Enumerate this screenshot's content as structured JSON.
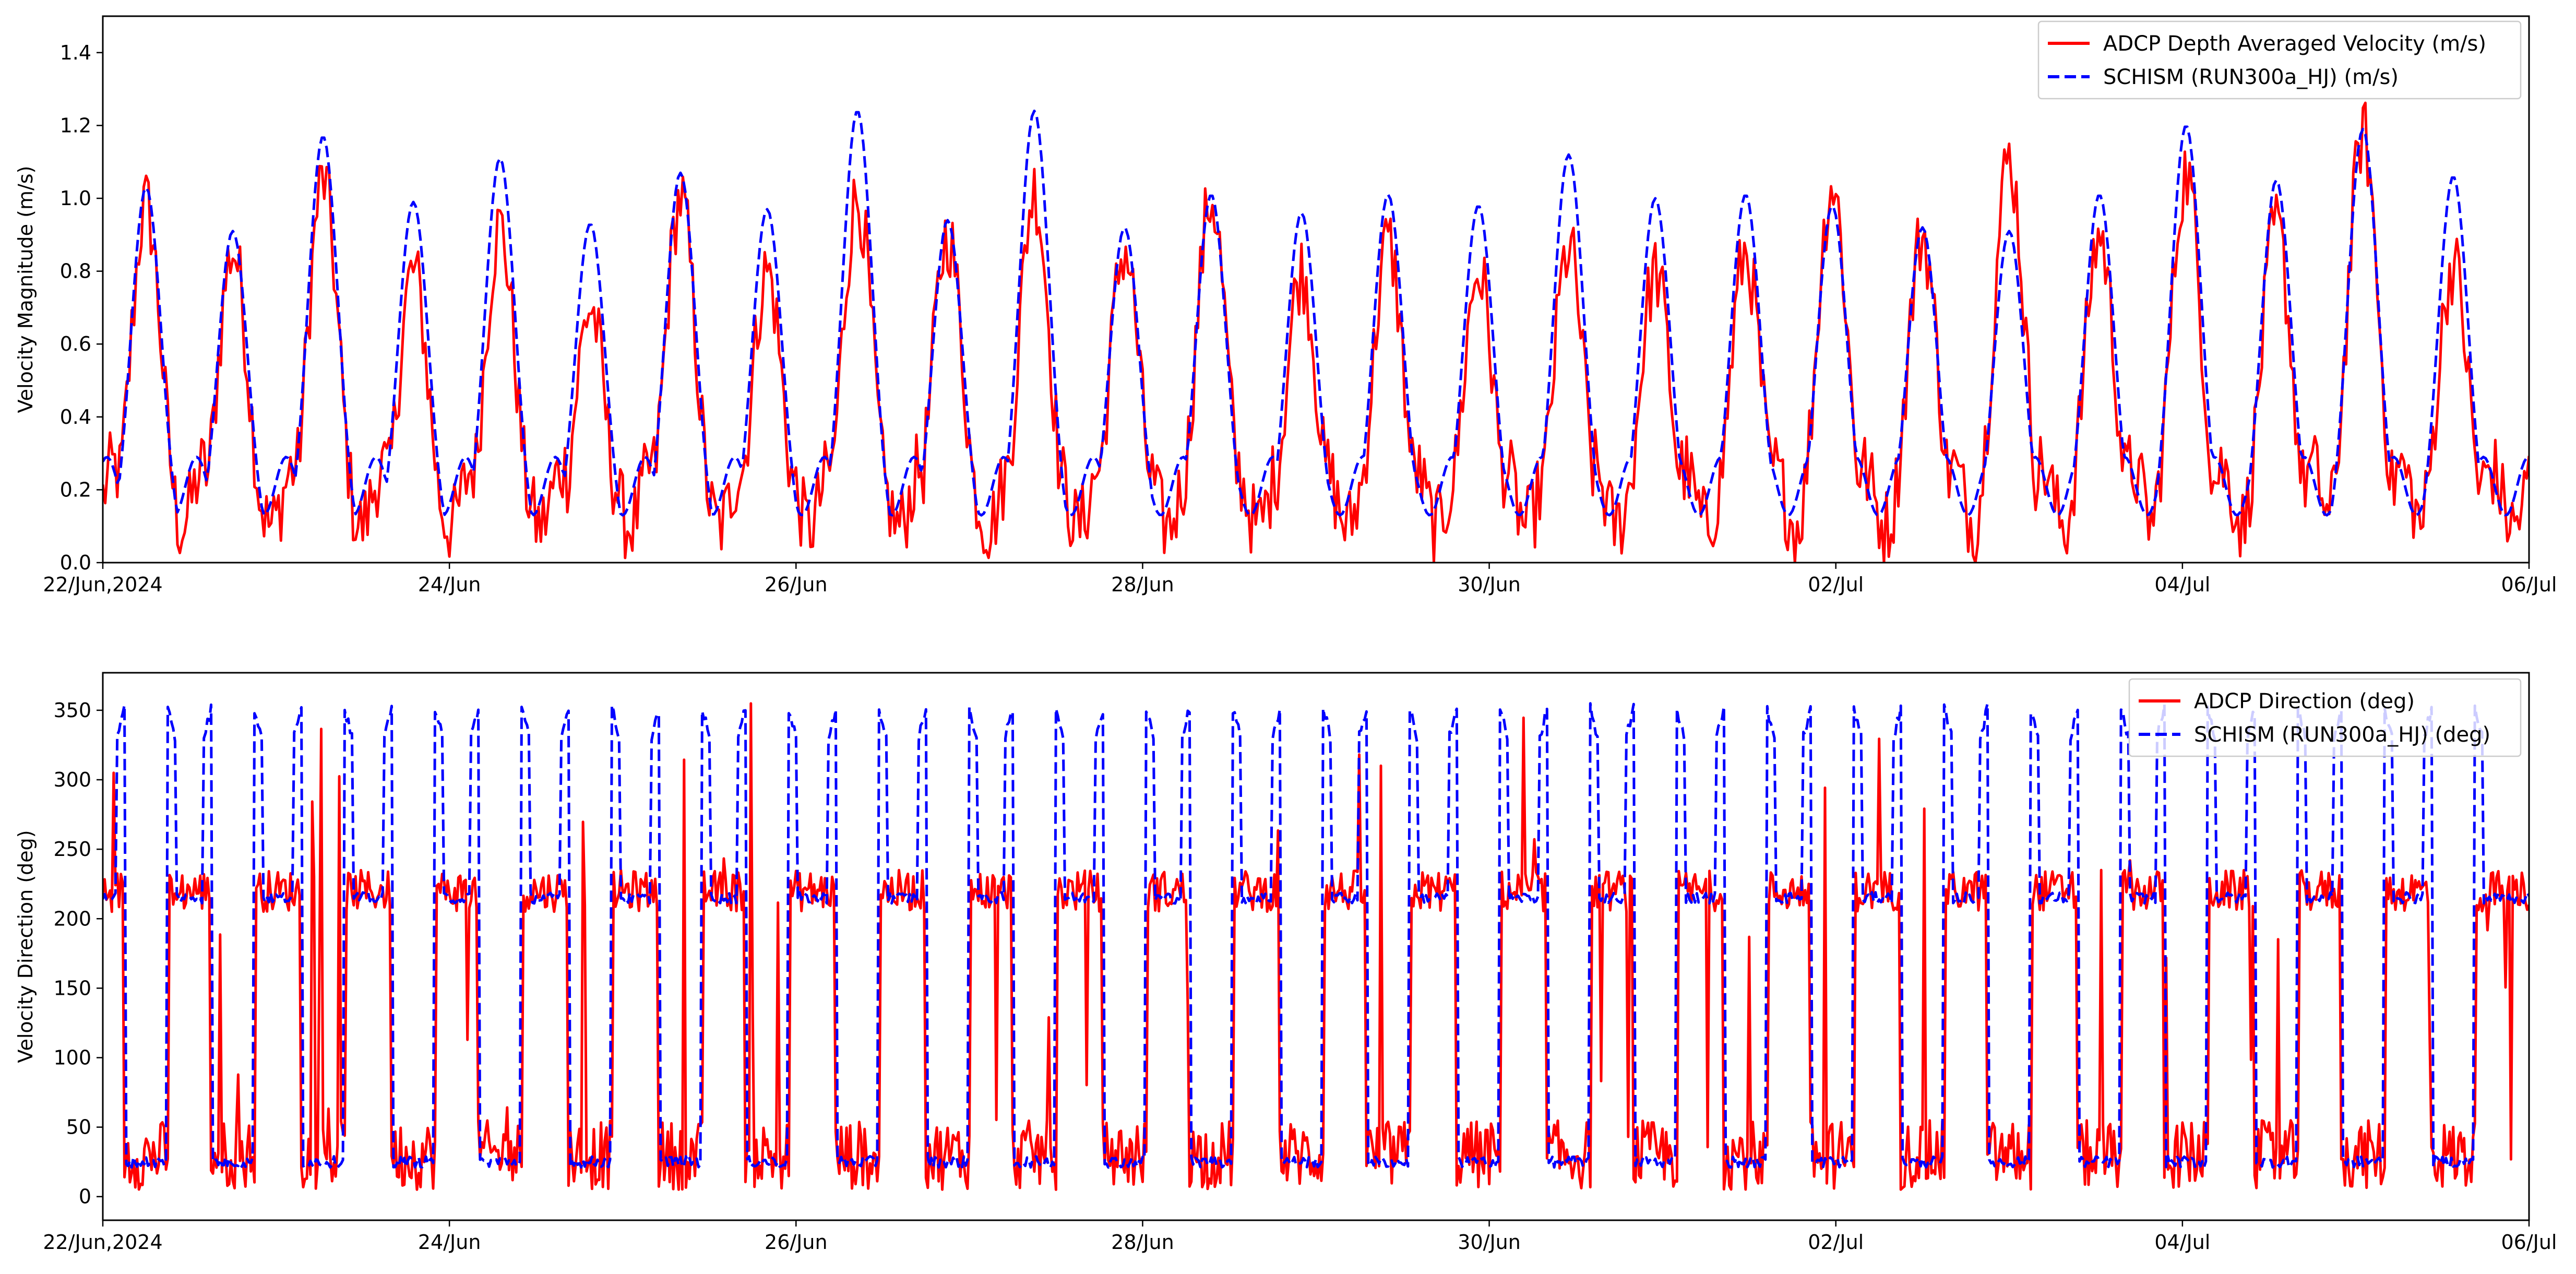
{
  "chart_data": [
    {
      "type": "line",
      "ylabel": "Velocity Magnitude (m/s)",
      "xlabel": "",
      "x_range": [
        "2024-06-22",
        "2024-07-06"
      ],
      "x_ticks": [
        {
          "date": "2024-06-22",
          "label": "22/Jun,2024"
        },
        {
          "date": "2024-06-24",
          "label": "24/Jun"
        },
        {
          "date": "2024-06-26",
          "label": "26/Jun"
        },
        {
          "date": "2024-06-28",
          "label": "28/Jun"
        },
        {
          "date": "2024-06-30",
          "label": "30/Jun"
        },
        {
          "date": "2024-07-02",
          "label": "02/Jul"
        },
        {
          "date": "2024-07-04",
          "label": "04/Jul"
        },
        {
          "date": "2024-07-06",
          "label": "06/Jul"
        }
      ],
      "ylim": [
        0.0,
        1.5
      ],
      "y_ticks": [
        "0.0",
        "0.2",
        "0.4",
        "0.6",
        "0.8",
        "1.0",
        "1.2",
        "1.4"
      ],
      "grid": false,
      "legend_position": "top-right",
      "series": [
        {
          "name": "ADCP Depth Averaged Velocity (m/s)",
          "color": "#ff0000",
          "style": "solid",
          "peaks": [
            {
              "date": "2024-06-22 06:00",
              "value": 0.98
            },
            {
              "date": "2024-06-22 18:00",
              "value": 0.86
            },
            {
              "date": "2024-06-23 06:30",
              "value": 1.05
            },
            {
              "date": "2024-06-23 19:00",
              "value": 0.8
            },
            {
              "date": "2024-06-24 07:00",
              "value": 0.92
            },
            {
              "date": "2024-06-24 19:30",
              "value": 0.7
            },
            {
              "date": "2024-06-25 08:00",
              "value": 1.0
            },
            {
              "date": "2024-06-25 20:00",
              "value": 0.8
            },
            {
              "date": "2024-06-26 08:30",
              "value": 1.0
            },
            {
              "date": "2024-06-26 21:00",
              "value": 0.9
            },
            {
              "date": "2024-06-27 09:00",
              "value": 1.02
            },
            {
              "date": "2024-06-27 21:30",
              "value": 0.86
            },
            {
              "date": "2024-06-28 09:30",
              "value": 1.0
            },
            {
              "date": "2024-06-28 22:00",
              "value": 0.8
            },
            {
              "date": "2024-06-29 10:00",
              "value": 0.88
            },
            {
              "date": "2024-06-29 22:30",
              "value": 0.8
            },
            {
              "date": "2024-06-30 11:00",
              "value": 0.86
            },
            {
              "date": "2024-06-30 23:00",
              "value": 0.8
            },
            {
              "date": "2024-07-01 11:30",
              "value": 0.85
            },
            {
              "date": "2024-07-01 23:30",
              "value": 1.04
            },
            {
              "date": "2024-07-02 12:00",
              "value": 0.9
            },
            {
              "date": "2024-07-03 00:00",
              "value": 1.11
            },
            {
              "date": "2024-07-03 12:30",
              "value": 0.9
            },
            {
              "date": "2024-07-04 00:30",
              "value": 1.07
            },
            {
              "date": "2024-07-04 13:00",
              "value": 0.92
            },
            {
              "date": "2024-07-05 01:00",
              "value": 1.18
            },
            {
              "date": "2024-07-05 13:30",
              "value": 0.82
            }
          ],
          "trough_range": [
            0.0,
            0.35
          ]
        },
        {
          "name": "SCHISM (RUN300a_HJ) (m/s)",
          "color": "#0000ff",
          "style": "dashed",
          "peaks": [
            {
              "date": "2024-06-22 06:00",
              "value": 1.03
            },
            {
              "date": "2024-06-22 18:00",
              "value": 0.91
            },
            {
              "date": "2024-06-23 06:30",
              "value": 1.17
            },
            {
              "date": "2024-06-23 19:00",
              "value": 0.99
            },
            {
              "date": "2024-06-24 07:00",
              "value": 1.11
            },
            {
              "date": "2024-06-24 19:30",
              "value": 0.93
            },
            {
              "date": "2024-06-25 08:00",
              "value": 1.07
            },
            {
              "date": "2024-06-25 20:00",
              "value": 0.97
            },
            {
              "date": "2024-06-26 08:30",
              "value": 1.24
            },
            {
              "date": "2024-06-26 21:00",
              "value": 0.94
            },
            {
              "date": "2024-06-27 09:00",
              "value": 1.24
            },
            {
              "date": "2024-06-27 21:30",
              "value": 0.92
            },
            {
              "date": "2024-06-28 09:30",
              "value": 1.01
            },
            {
              "date": "2024-06-28 22:00",
              "value": 0.96
            },
            {
              "date": "2024-06-29 10:00",
              "value": 1.01
            },
            {
              "date": "2024-06-29 22:30",
              "value": 0.98
            },
            {
              "date": "2024-06-30 11:00",
              "value": 1.12
            },
            {
              "date": "2024-06-30 23:00",
              "value": 1.0
            },
            {
              "date": "2024-07-01 11:30",
              "value": 1.01
            },
            {
              "date": "2024-07-01 23:30",
              "value": 0.98
            },
            {
              "date": "2024-07-02 12:00",
              "value": 0.92
            },
            {
              "date": "2024-07-03 00:00",
              "value": 0.91
            },
            {
              "date": "2024-07-03 12:30",
              "value": 1.01
            },
            {
              "date": "2024-07-04 00:30",
              "value": 1.2
            },
            {
              "date": "2024-07-04 13:00",
              "value": 1.05
            },
            {
              "date": "2024-07-05 01:00",
              "value": 1.19
            },
            {
              "date": "2024-07-05 13:30",
              "value": 1.06
            }
          ],
          "trough_range": [
            0.03,
            0.5
          ]
        }
      ]
    },
    {
      "type": "line",
      "ylabel": "Velocity Direction (deg)",
      "xlabel": "",
      "x_range": [
        "2024-06-22",
        "2024-07-06"
      ],
      "x_ticks": [
        {
          "date": "2024-06-22",
          "label": "22/Jun,2024"
        },
        {
          "date": "2024-06-24",
          "label": "24/Jun"
        },
        {
          "date": "2024-06-26",
          "label": "26/Jun"
        },
        {
          "date": "2024-06-28",
          "label": "28/Jun"
        },
        {
          "date": "2024-06-30",
          "label": "30/Jun"
        },
        {
          "date": "2024-07-02",
          "label": "02/Jul"
        },
        {
          "date": "2024-07-04",
          "label": "04/Jul"
        },
        {
          "date": "2024-07-06",
          "label": "06/Jul"
        }
      ],
      "ylim": [
        -17,
        377
      ],
      "y_ticks": [
        "0",
        "50",
        "100",
        "150",
        "200",
        "250",
        "300",
        "350"
      ],
      "grid": false,
      "legend_position": "top-right",
      "series": [
        {
          "name": "ADCP Direction (deg)",
          "color": "#ff0000",
          "style": "solid",
          "ebb_level": 220,
          "flood_level": 30,
          "range": [
            0,
            360
          ]
        },
        {
          "name": "SCHISM (RUN300a_HJ) (deg)",
          "color": "#0000ff",
          "style": "dashed",
          "ebb_level": 215,
          "flood_level": 25,
          "max": 355,
          "range": [
            0,
            357
          ]
        }
      ]
    }
  ]
}
